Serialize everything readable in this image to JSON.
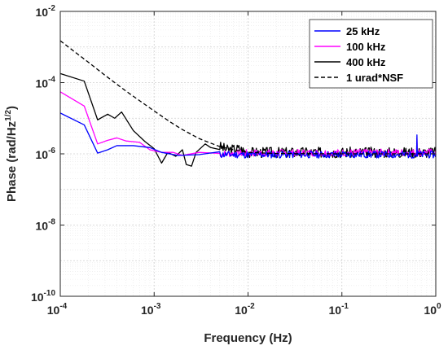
{
  "chart_data": {
    "type": "line",
    "xscale": "log",
    "yscale": "log",
    "xlim": [
      0.0001,
      1
    ],
    "ylim": [
      1e-10,
      0.01
    ],
    "xlabel": "Frequency (Hz)",
    "ylabel": "Phase (rad/Hz",
    "ylabel_sup": "1/2",
    "ylabel_tail": ")",
    "grid": true,
    "legend_position": "top-right",
    "x_ticks": [
      {
        "base": "10",
        "exp": "-4",
        "value": 0.0001
      },
      {
        "base": "10",
        "exp": "-3",
        "value": 0.001
      },
      {
        "base": "10",
        "exp": "-2",
        "value": 0.01
      },
      {
        "base": "10",
        "exp": "-1",
        "value": 0.1
      },
      {
        "base": "10",
        "exp": "0",
        "value": 1
      }
    ],
    "y_ticks": [
      {
        "base": "10",
        "exp": "-2",
        "value": 0.01
      },
      {
        "base": "10",
        "exp": "-4",
        "value": 0.0001
      },
      {
        "base": "10",
        "exp": "-6",
        "value": 1e-06
      },
      {
        "base": "10",
        "exp": "-8",
        "value": 1e-08
      },
      {
        "base": "10",
        "exp": "-10",
        "value": 1e-10
      }
    ],
    "series": [
      {
        "name": "400 kHz",
        "color": "#000000",
        "dash": "none",
        "kind": "noise",
        "points": [
          [
            0.0001,
            0.00018
          ],
          [
            0.00018,
            0.00011
          ],
          [
            0.00025,
            9e-06
          ],
          [
            0.00032,
            1.3e-05
          ],
          [
            0.00038,
            1e-05
          ],
          [
            0.00045,
            1.5e-05
          ],
          [
            0.0006,
            4.5e-06
          ],
          [
            0.0008,
            2.2e-06
          ],
          [
            0.001,
            1.4e-06
          ],
          [
            0.0012,
            5.5e-07
          ],
          [
            0.0014,
            1.1e-06
          ],
          [
            0.0017,
            8.5e-07
          ],
          [
            0.002,
            1.3e-06
          ],
          [
            0.0022,
            5e-07
          ],
          [
            0.0025,
            4.5e-07
          ],
          [
            0.0028,
            1.1e-06
          ],
          [
            0.0035,
            1.9e-06
          ],
          [
            0.004,
            1.5e-06
          ],
          [
            0.005,
            1.6e-06
          ],
          [
            0.006,
            1.3e-06
          ],
          [
            0.008,
            1.4e-06
          ],
          [
            0.01,
            1.1e-06
          ],
          [
            1,
            1.1e-06
          ]
        ],
        "noise_base": 1.05e-06,
        "noise_amp": 0.15,
        "seed": 3
      },
      {
        "name": "100 kHz",
        "color": "#ff00ff",
        "dash": "none",
        "kind": "noise",
        "points": [
          [
            0.0001,
            5.5e-05
          ],
          [
            0.00018,
            2.2e-05
          ],
          [
            0.00025,
            1.9e-06
          ],
          [
            0.00032,
            2.4e-06
          ],
          [
            0.0004,
            2.8e-06
          ],
          [
            0.0005,
            2.3e-06
          ],
          [
            0.0007,
            2.1e-06
          ],
          [
            0.0009,
            1.3e-06
          ],
          [
            0.0012,
            1.1e-06
          ],
          [
            0.0016,
            1.1e-06
          ],
          [
            0.002,
            9e-07
          ],
          [
            0.003,
            1.1e-06
          ],
          [
            0.005,
            1e-06
          ],
          [
            0.01,
            1.05e-06
          ],
          [
            1,
            1.1e-06
          ]
        ],
        "noise_base": 1.02e-06,
        "noise_amp": 0.1,
        "seed": 7,
        "spikes": [
          [
            0.63,
            2.8e-06
          ]
        ]
      },
      {
        "name": "25 kHz",
        "color": "#0000ff",
        "dash": "none",
        "kind": "noise",
        "points": [
          [
            0.0001,
            1.4e-05
          ],
          [
            0.00018,
            6.5e-06
          ],
          [
            0.00025,
            1.05e-06
          ],
          [
            0.00032,
            1.3e-06
          ],
          [
            0.0004,
            1.7e-06
          ],
          [
            0.0006,
            1.7e-06
          ],
          [
            0.0009,
            1.5e-06
          ],
          [
            0.0012,
            1.1e-06
          ],
          [
            0.0018,
            9e-07
          ],
          [
            0.003,
            9.5e-07
          ],
          [
            0.01,
            9.5e-07
          ],
          [
            1,
            9.5e-07
          ]
        ],
        "noise_base": 9.5e-07,
        "noise_amp": 0.1,
        "seed": 11,
        "spikes": [
          [
            0.63,
            3.4e-06
          ]
        ]
      },
      {
        "name": "1 urad*NSF",
        "color": "#000000",
        "dash": "5,3",
        "kind": "smooth",
        "points": [
          [
            0.0001,
            0.0015
          ],
          [
            0.00015,
            0.00066
          ],
          [
            0.0002,
            0.00037
          ],
          [
            0.0003,
            0.00016
          ],
          [
            0.0005,
            5.8e-05
          ],
          [
            0.0007,
            3.1e-05
          ],
          [
            0.001,
            1.6e-05
          ],
          [
            0.0015,
            7.7e-06
          ],
          [
            0.002,
            4.8e-06
          ],
          [
            0.0025,
            3.5e-06
          ],
          [
            0.003,
            2.7e-06
          ],
          [
            0.004,
            2e-06
          ],
          [
            0.005,
            1.6e-06
          ],
          [
            0.007,
            1.3e-06
          ],
          [
            0.01,
            1.1e-06
          ],
          [
            0.02,
            1.02e-06
          ],
          [
            0.1,
            1e-06
          ],
          [
            1,
            1e-06
          ]
        ]
      }
    ]
  }
}
